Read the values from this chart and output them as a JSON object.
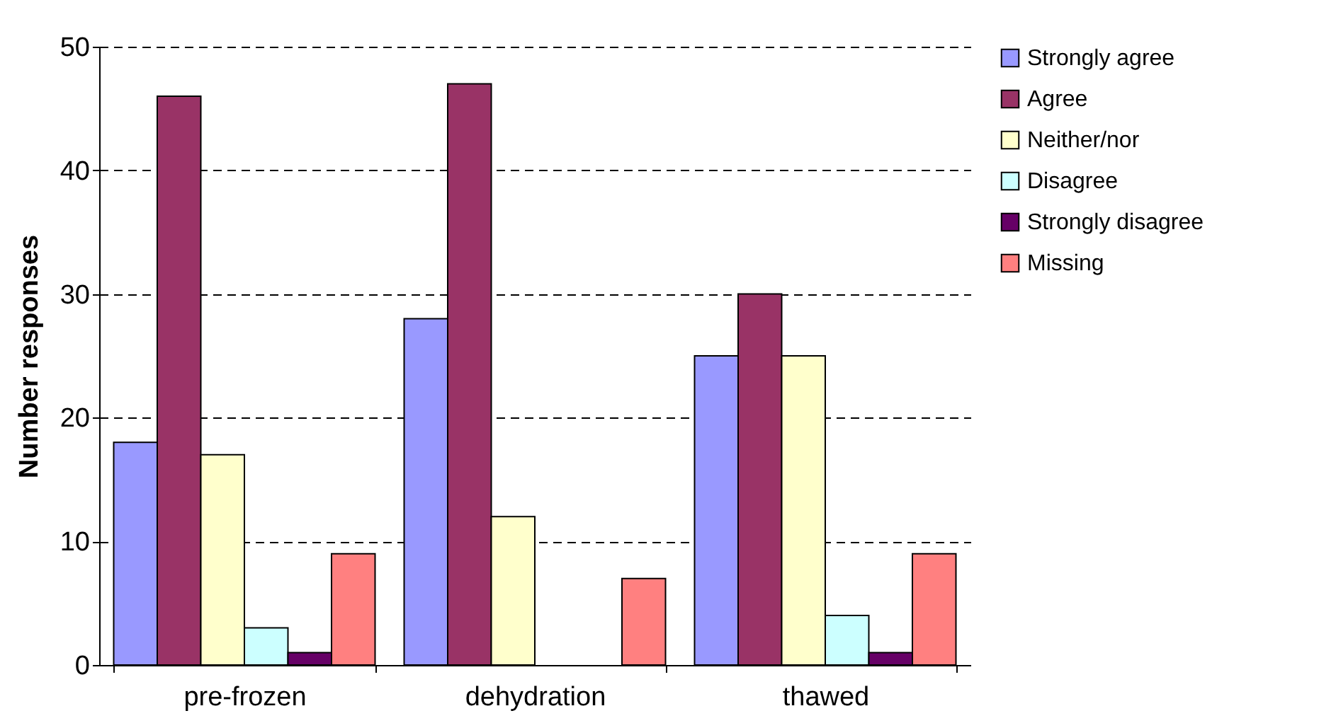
{
  "chart_data": {
    "type": "bar",
    "ylabel": "Number responses",
    "categories": [
      "pre-frozen",
      "dehydration",
      "thawed"
    ],
    "series": [
      {
        "name": "Strongly agree",
        "color": "#9999ff",
        "values": [
          18,
          28,
          25
        ]
      },
      {
        "name": "Agree",
        "color": "#993366",
        "values": [
          46,
          47,
          30
        ]
      },
      {
        "name": "Neither/nor",
        "color": "#ffffcc",
        "values": [
          17,
          12,
          25
        ]
      },
      {
        "name": "Disagree",
        "color": "#ccffff",
        "values": [
          3,
          null,
          4
        ]
      },
      {
        "name": "Strongly disagree",
        "color": "#660066",
        "values": [
          1,
          null,
          1
        ]
      },
      {
        "name": "Missing",
        "color": "#ff8080",
        "values": [
          9,
          7,
          9
        ]
      }
    ],
    "ylim": [
      0,
      50
    ],
    "yticks": [
      0,
      10,
      20,
      30,
      40,
      50
    ],
    "grid": "y",
    "legend": "right"
  }
}
